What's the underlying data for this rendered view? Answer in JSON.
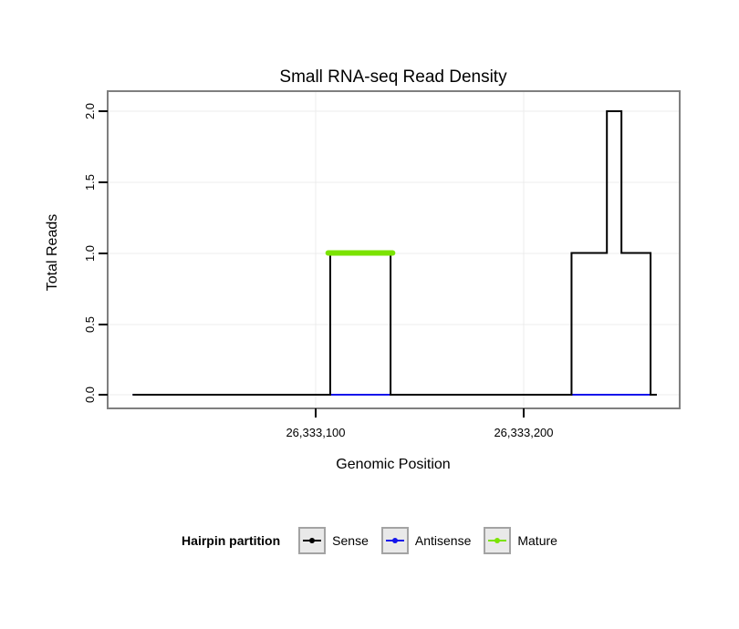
{
  "chart_data": {
    "type": "line",
    "title": "Small RNA-seq Read Density",
    "xlabel": "Genomic Position",
    "ylabel": "Total Reads",
    "xlim": [
      26333000,
      26333275
    ],
    "ylim": [
      0,
      2
    ],
    "grid": true,
    "legend_position": "bottom",
    "x_ticks": [
      {
        "value": 26333100,
        "label": "26,333,100"
      },
      {
        "value": 26333200,
        "label": "26,333,200"
      }
    ],
    "y_ticks": [
      {
        "value": 0.0,
        "label": "0.0"
      },
      {
        "value": 0.5,
        "label": "0.5"
      },
      {
        "value": 1.0,
        "label": "1.0"
      },
      {
        "value": 1.5,
        "label": "1.5"
      },
      {
        "value": 2.0,
        "label": "2.0"
      }
    ],
    "series": [
      {
        "name": "Antisense",
        "color": "#1414EB",
        "width": 2,
        "points": [
          [
            26333012,
            0
          ],
          [
            26333264,
            0
          ]
        ]
      },
      {
        "name": "Sense",
        "color": "#000000",
        "width": 2,
        "points": [
          [
            26333012,
            0
          ],
          [
            26333107,
            0
          ],
          [
            26333107,
            1
          ],
          [
            26333136,
            1
          ],
          [
            26333136,
            0
          ],
          [
            26333223,
            0
          ],
          [
            26333223,
            1
          ],
          [
            26333240,
            1
          ],
          [
            26333240,
            2
          ],
          [
            26333247,
            2
          ],
          [
            26333247,
            1
          ],
          [
            26333261,
            1
          ],
          [
            26333261,
            0
          ],
          [
            26333264,
            0
          ]
        ]
      },
      {
        "name": "Mature",
        "color": "#7BE300",
        "width": 6,
        "points": [
          [
            26333106,
            1
          ],
          [
            26333137,
            1
          ]
        ]
      }
    ],
    "legend": {
      "title": "Hairpin partition",
      "entries": [
        {
          "label": "Sense",
          "color": "#000000"
        },
        {
          "label": "Antisense",
          "color": "#1414EB"
        },
        {
          "label": "Mature",
          "color": "#7BE300"
        }
      ]
    }
  }
}
